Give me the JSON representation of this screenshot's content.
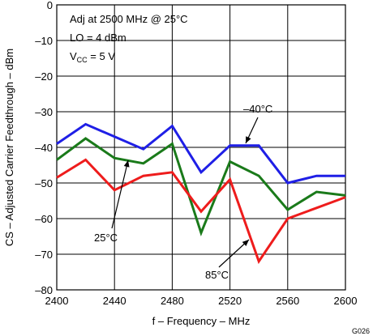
{
  "chart_data": {
    "type": "line",
    "xlabel": "f – Frequency – MHz",
    "ylabel": "CS – Adjusted Carrier Feedthrough – dBm",
    "xlim": [
      2400,
      2600
    ],
    "ylim": [
      -80,
      0
    ],
    "x_ticks": [
      2400,
      2440,
      2480,
      2520,
      2560,
      2600
    ],
    "x_tick_labels": [
      "2400",
      "2440",
      "2480",
      "2520",
      "2560",
      "2600"
    ],
    "y_ticks": [
      0,
      -10,
      -20,
      -30,
      -40,
      -50,
      -60,
      -70,
      -80
    ],
    "y_tick_labels": [
      "0",
      "–10",
      "–20",
      "–30",
      "–40",
      "–50",
      "–60",
      "–70",
      "–80"
    ],
    "x_grid": [
      2400,
      2440,
      2480,
      2520,
      2560,
      2600
    ],
    "y_grid": [
      0,
      -10,
      -20,
      -30,
      -40,
      -50,
      -60,
      -70,
      -80
    ],
    "grid": true,
    "conditions": {
      "line1": "Adj at 2500 MHz @ 25°C",
      "line2": "LO = 4 dBm",
      "vcc_main": "V",
      "vcc_sub": "CC",
      "vcc_value": " =  5 V"
    },
    "figure_id": "G026",
    "x": [
      2400,
      2420,
      2440,
      2460,
      2480,
      2500,
      2520,
      2540,
      2560,
      2580,
      2600
    ],
    "series": [
      {
        "label": "–40°C",
        "color": "#1f1fe6",
        "values": [
          -39,
          -33.5,
          -37,
          -40.5,
          -34,
          -47,
          -39.5,
          -39.5,
          -50,
          -48,
          -48
        ]
      },
      {
        "label": "25°C",
        "color": "#1a7a1a",
        "values": [
          -43.5,
          -37.5,
          -43,
          -44.5,
          -39,
          -64,
          -44,
          -48,
          -57.5,
          -52.5,
          -53.5
        ]
      },
      {
        "label": "85°C",
        "color": "#ee1c1c",
        "values": [
          -48.5,
          -43.5,
          -52,
          -48,
          -47,
          -58,
          -49,
          -72,
          -60,
          -57,
          -54
        ]
      }
    ],
    "annotations": [
      {
        "text": "–40°C",
        "series": 0
      },
      {
        "text": "25°C",
        "series": 1
      },
      {
        "text": "85°C",
        "series": 2
      }
    ]
  }
}
